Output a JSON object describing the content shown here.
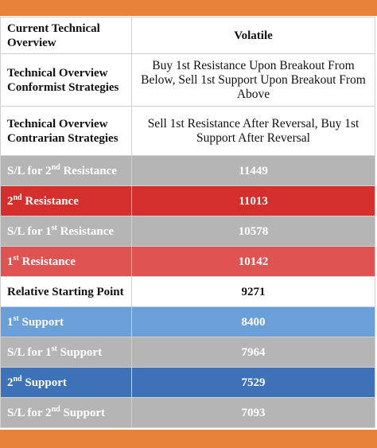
{
  "table": {
    "rows": [
      {
        "label": [
          {
            "text": "Current Technical Overview"
          }
        ],
        "value": "Volatile",
        "fill": "#ffffff",
        "text_color": "#111111",
        "height": 46
      },
      {
        "label": [
          {
            "text": "Technical Overview Conformist Strategies"
          }
        ],
        "value": "Buy 1st Resistance Upon Breakout From Below, Sell 1st Support Upon Breakout From Above",
        "fill": "#ffffff",
        "text_color": "#111111",
        "height": 66,
        "plain": true
      },
      {
        "label": [
          {
            "text": "Technical Overview Contrarian Strategies"
          }
        ],
        "value": "Sell 1st Resistance After Reversal, Buy 1st Support After Reversal",
        "fill": "#ffffff",
        "text_color": "#111111",
        "height": 62,
        "plain": true
      },
      {
        "label": [
          {
            "text": "S/L for 2"
          },
          {
            "text": "nd",
            "sup": true
          },
          {
            "text": " Resistance"
          }
        ],
        "value": 11449,
        "fill": "#b5b5b5",
        "text_color": "#ffffff",
        "height": 38
      },
      {
        "label": [
          {
            "text": "2"
          },
          {
            "text": "nd",
            "sup": true
          },
          {
            "text": " Resistance"
          }
        ],
        "value": 11013,
        "fill": "#d42f2c",
        "text_color": "#ffffff",
        "height": 38
      },
      {
        "label": [
          {
            "text": "S/L for 1"
          },
          {
            "text": "st",
            "sup": true
          },
          {
            "text": " Resistance"
          }
        ],
        "value": 10578,
        "fill": "#b5b5b5",
        "text_color": "#ffffff",
        "height": 38
      },
      {
        "label": [
          {
            "text": "1"
          },
          {
            "text": "st",
            "sup": true
          },
          {
            "text": " Resistance"
          }
        ],
        "value": 10142,
        "fill": "#e05353",
        "text_color": "#ffffff",
        "height": 38
      },
      {
        "label": [
          {
            "text": "Relative Starting Point"
          }
        ],
        "value": 9271,
        "fill": "#ffffff",
        "text_color": "#111111",
        "height": 38
      },
      {
        "label": [
          {
            "text": "1"
          },
          {
            "text": "st",
            "sup": true
          },
          {
            "text": " Support"
          }
        ],
        "value": 8400,
        "fill": "#6b9fd9",
        "text_color": "#ffffff",
        "height": 38
      },
      {
        "label": [
          {
            "text": "S/L for 1"
          },
          {
            "text": "st",
            "sup": true
          },
          {
            "text": " Support"
          }
        ],
        "value": 7964,
        "fill": "#b5b5b5",
        "text_color": "#ffffff",
        "height": 38
      },
      {
        "label": [
          {
            "text": "2"
          },
          {
            "text": "nd",
            "sup": true
          },
          {
            "text": " Support"
          }
        ],
        "value": 7529,
        "fill": "#3d72b8",
        "text_color": "#ffffff",
        "height": 38
      },
      {
        "label": [
          {
            "text": "S/L for 2"
          },
          {
            "text": "nd",
            "sup": true
          },
          {
            "text": " Support"
          }
        ],
        "value": 7093,
        "fill": "#b5b5b5",
        "text_color": "#ffffff",
        "height": 38
      }
    ]
  }
}
